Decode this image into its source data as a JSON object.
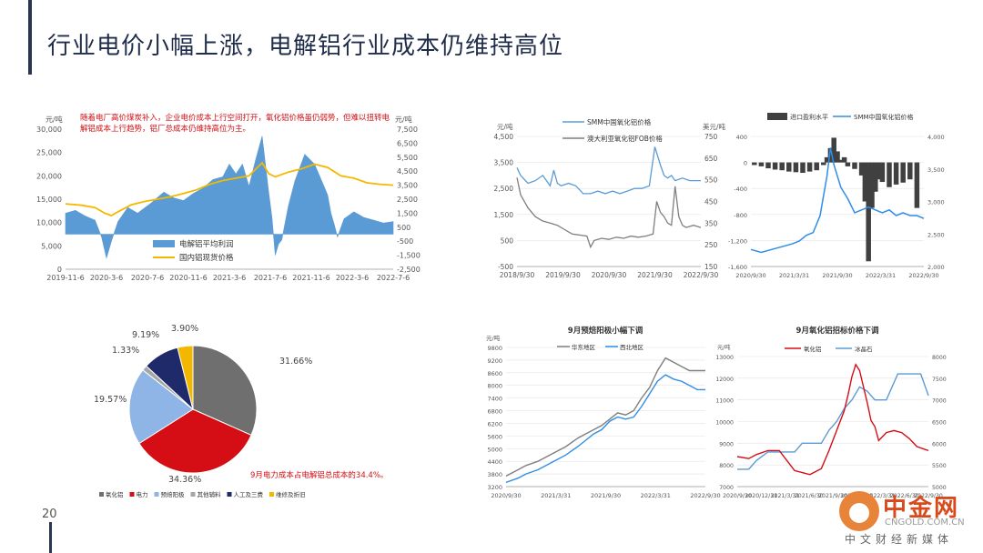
{
  "slide": {
    "title": "行业电价小幅上涨，电解铝行业成本仍维持高位",
    "page_number": "20"
  },
  "watermark": {
    "name": "中金网",
    "url": "CNGOLD.COM.CN",
    "slogan": "中文财经新媒体"
  },
  "chart_data": [
    {
      "id": "profit",
      "type": "area",
      "annotation": "随着电厂高价煤炭补入，企业电价成本上行空间打开，氧化铝价格虽仍弱势，但难以扭转电解铝成本上行趋势，铝厂总成本仍维持高位为主。",
      "left_unit": "元/吨",
      "right_unit": "元/吨",
      "left_ticks": [
        "30,000",
        "25,000",
        "20,000",
        "15,000",
        "10,000",
        "5,000",
        "0"
      ],
      "right_ticks": [
        "7,500",
        "6,500",
        "5,500",
        "4,500",
        "3,500",
        "2,500",
        "1,500",
        "500",
        "-500",
        "-1,500",
        "-2,500"
      ],
      "x_ticks": [
        "2019-11-6",
        "2020-3-6",
        "2020-7-6",
        "2020-11-6",
        "2021-3-6",
        "2021-7-6",
        "2021-11-6",
        "2022-3-6",
        "2022-7-6"
      ],
      "left_range": [
        0,
        30000
      ],
      "right_range": [
        -2500,
        7500
      ],
      "series": [
        {
          "name": "电解铝平均利润",
          "color": "#5b9bd5",
          "axis": "right",
          "x": [
            0,
            0.03,
            0.06,
            0.09,
            0.11,
            0.125,
            0.14,
            0.16,
            0.19,
            0.22,
            0.26,
            0.3,
            0.33,
            0.36,
            0.39,
            0.42,
            0.45,
            0.48,
            0.5,
            0.52,
            0.54,
            0.56,
            0.58,
            0.6,
            0.62,
            0.63,
            0.64,
            0.65,
            0.66,
            0.68,
            0.7,
            0.73,
            0.76,
            0.78,
            0.8,
            0.81,
            0.82,
            0.83,
            0.85,
            0.88,
            0.91,
            0.94,
            0.97,
            1.0
          ],
          "y": [
            1500,
            1700,
            1300,
            1000,
            -200,
            -1700,
            -500,
            900,
            1900,
            1500,
            2200,
            3000,
            2600,
            2400,
            2900,
            3300,
            3900,
            4100,
            5000,
            4300,
            5000,
            3400,
            5300,
            7000,
            3000,
            1200,
            -1500,
            -700,
            -400,
            2000,
            3800,
            5700,
            5000,
            3900,
            2800,
            1500,
            700,
            -200,
            1100,
            1600,
            1200,
            1000,
            800,
            900
          ]
        },
        {
          "name": "国内铝现货价格",
          "color": "#f5b800",
          "axis": "left",
          "x": [
            0,
            0.05,
            0.09,
            0.12,
            0.14,
            0.16,
            0.2,
            0.24,
            0.28,
            0.32,
            0.36,
            0.4,
            0.44,
            0.48,
            0.52,
            0.56,
            0.6,
            0.62,
            0.64,
            0.66,
            0.68,
            0.72,
            0.76,
            0.8,
            0.84,
            0.88,
            0.92,
            0.96,
            1.0
          ],
          "y": [
            14000,
            13700,
            13200,
            12000,
            11500,
            12300,
            13800,
            14500,
            15000,
            15500,
            16200,
            17000,
            18200,
            19000,
            19500,
            20000,
            22800,
            20500,
            19800,
            20300,
            20800,
            21500,
            22500,
            21800,
            20000,
            19500,
            18500,
            18200,
            18000
          ]
        }
      ]
    },
    {
      "id": "alumina-price",
      "type": "line",
      "left_unit": "元/吨",
      "right_unit": "美元/吨",
      "left_ticks": [
        "4,500",
        "3,500",
        "2,500",
        "1,500",
        "500",
        "-500"
      ],
      "right_ticks": [
        "750",
        "650",
        "550",
        "450",
        "350",
        "250",
        "150"
      ],
      "x_ticks": [
        "2018/9/30",
        "2019/9/30",
        "2020/9/30",
        "2021/9/30",
        "2022/9/30"
      ],
      "left_range": [
        -500,
        4500
      ],
      "right_range": [
        150,
        750
      ],
      "series": [
        {
          "name": "SMM中国氧化铝价格",
          "color": "#5b9bd5",
          "axis": "left",
          "x": [
            0,
            0.02,
            0.06,
            0.1,
            0.14,
            0.18,
            0.2,
            0.22,
            0.24,
            0.28,
            0.32,
            0.36,
            0.4,
            0.44,
            0.48,
            0.52,
            0.56,
            0.6,
            0.64,
            0.68,
            0.72,
            0.75,
            0.78,
            0.8,
            0.82,
            0.84,
            0.86,
            0.9,
            0.94,
            1.0
          ],
          "y": [
            3300,
            3000,
            2700,
            2800,
            3000,
            2600,
            3200,
            2700,
            2600,
            2700,
            2600,
            2300,
            2300,
            2400,
            2300,
            2400,
            2300,
            2400,
            2500,
            2500,
            2600,
            4100,
            3400,
            3000,
            2900,
            3000,
            2800,
            2900,
            2800,
            2800
          ]
        },
        {
          "name": "澳大利亚氧化铝FOB价格",
          "color": "#7f7f7f",
          "axis": "right",
          "x": [
            0,
            0.02,
            0.06,
            0.1,
            0.14,
            0.18,
            0.22,
            0.26,
            0.3,
            0.34,
            0.38,
            0.4,
            0.42,
            0.46,
            0.5,
            0.54,
            0.58,
            0.62,
            0.66,
            0.7,
            0.74,
            0.76,
            0.78,
            0.8,
            0.82,
            0.84,
            0.86,
            0.88,
            0.9,
            0.92,
            0.96,
            1.0
          ],
          "y": [
            560,
            480,
            420,
            380,
            360,
            350,
            340,
            320,
            300,
            295,
            290,
            240,
            270,
            280,
            275,
            285,
            280,
            290,
            285,
            290,
            300,
            450,
            400,
            380,
            350,
            340,
            520,
            380,
            340,
            330,
            340,
            330
          ]
        }
      ]
    },
    {
      "id": "import-margin",
      "type": "bar",
      "left_ticks": [
        "400",
        "0",
        "-400",
        "-800",
        "-1,200",
        "-1,600"
      ],
      "right_ticks": [
        "4,000",
        "3,500",
        "3,000",
        "2,500",
        "2,000"
      ],
      "x_ticks": [
        "2020/9/30",
        "2021/3/31",
        "2021/9/30",
        "2022/3/31",
        "2022/9/30"
      ],
      "left_range": [
        -1600,
        400
      ],
      "right_range": [
        2000,
        4300
      ],
      "series": [
        {
          "name": "进口盈利水平",
          "color": "#404040",
          "axis": "left",
          "x": [
            0.02,
            0.06,
            0.1,
            0.14,
            0.18,
            0.22,
            0.26,
            0.3,
            0.34,
            0.38,
            0.42,
            0.44,
            0.46,
            0.48,
            0.5,
            0.52,
            0.54,
            0.56,
            0.6,
            0.64,
            0.66,
            0.68,
            0.7,
            0.72,
            0.74,
            0.76,
            0.8,
            0.84,
            0.88,
            0.92,
            0.96
          ],
          "y": [
            -40,
            -60,
            -90,
            -110,
            -120,
            -140,
            -150,
            -160,
            -140,
            -120,
            -40,
            80,
            220,
            380,
            170,
            40,
            80,
            -60,
            -100,
            -200,
            -600,
            -1520,
            -700,
            -450,
            -260,
            -300,
            -380,
            -340,
            -310,
            -260,
            -700
          ]
        },
        {
          "name": "SMM中国氧化铝价格",
          "color": "#2e8ee8",
          "axis": "right",
          "x": [
            0,
            0.06,
            0.12,
            0.18,
            0.24,
            0.28,
            0.32,
            0.36,
            0.4,
            0.44,
            0.46,
            0.48,
            0.5,
            0.52,
            0.56,
            0.6,
            0.64,
            0.68,
            0.72,
            0.76,
            0.8,
            0.84,
            0.88,
            0.92,
            0.96,
            1.0
          ],
          "y": [
            2300,
            2250,
            2300,
            2350,
            2400,
            2450,
            2550,
            2600,
            2900,
            3600,
            4100,
            3800,
            3600,
            3400,
            3200,
            2950,
            3000,
            3050,
            3000,
            2950,
            3000,
            2900,
            2950,
            2900,
            2900,
            2850
          ]
        }
      ]
    },
    {
      "id": "cost-share",
      "type": "pie",
      "note": "9月电力成本占电解铝总成本的34.4%。",
      "slices": [
        {
          "name": "氧化铝",
          "value": 31.66,
          "label": "31.66%",
          "color": "#6f6f6f"
        },
        {
          "name": "电力",
          "value": 34.36,
          "label": "34.36%",
          "color": "#d40e14"
        },
        {
          "name": "预焙阳极",
          "value": 19.57,
          "label": "19.57%",
          "color": "#8fb4e6"
        },
        {
          "name": "其他辅料",
          "value": 1.33,
          "label": "1.33%",
          "color": "#a6a6a6"
        },
        {
          "name": "人工及三费",
          "value": 9.19,
          "label": "9.19%",
          "color": "#1f2a6b"
        },
        {
          "name": "维修及折旧",
          "value": 3.9,
          "label": "3.90%",
          "color": "#f2b800"
        }
      ]
    },
    {
      "id": "anode",
      "type": "line",
      "title": "9月预焙阳极小幅下调",
      "left_unit": "元/吨",
      "left_ticks": [
        "9800",
        "9200",
        "8600",
        "8000",
        "7400",
        "6800",
        "6200",
        "5600",
        "5000",
        "4400",
        "3800",
        "3200"
      ],
      "x_ticks": [
        "2020/9/30",
        "2021/3/31",
        "2021/9/30",
        "2022/3/31",
        "2022/9/30"
      ],
      "left_range": [
        3200,
        9800
      ],
      "series": [
        {
          "name": "华东地区",
          "color": "#7f7f7f",
          "x": [
            0,
            0.06,
            0.1,
            0.16,
            0.22,
            0.3,
            0.36,
            0.4,
            0.44,
            0.48,
            0.52,
            0.56,
            0.6,
            0.64,
            0.68,
            0.72,
            0.76,
            0.8,
            0.84,
            0.88,
            0.92,
            0.96,
            1.0
          ],
          "y": [
            3700,
            4000,
            4200,
            4400,
            4700,
            5100,
            5500,
            5700,
            5900,
            6100,
            6400,
            6700,
            6600,
            6800,
            7400,
            7900,
            8700,
            9300,
            9100,
            8900,
            8700,
            8700,
            8700
          ]
        },
        {
          "name": "西北地区",
          "color": "#2e8ee8",
          "x": [
            0,
            0.06,
            0.1,
            0.16,
            0.22,
            0.3,
            0.36,
            0.4,
            0.44,
            0.48,
            0.52,
            0.56,
            0.6,
            0.64,
            0.68,
            0.72,
            0.76,
            0.8,
            0.84,
            0.88,
            0.92,
            0.96,
            1.0
          ],
          "y": [
            3400,
            3600,
            3800,
            4000,
            4300,
            4700,
            5100,
            5400,
            5700,
            5900,
            6300,
            6500,
            6400,
            6500,
            7000,
            7600,
            8200,
            8500,
            8300,
            8200,
            8000,
            7800,
            7800
          ]
        }
      ]
    },
    {
      "id": "alumina-bid",
      "type": "line",
      "title": "9月氧化铝招标价格下调",
      "left_unit": "元/吨",
      "left_ticks": [
        "13000",
        "12000",
        "11000",
        "10000",
        "9000",
        "8000",
        "7000"
      ],
      "right_ticks": [
        "8000",
        "7500",
        "7000",
        "6500",
        "6000",
        "5500",
        "5000"
      ],
      "x_ticks": [
        "2020/9/30",
        "2020/12/31",
        "2021/3/31",
        "2021/6/30",
        "2021/9/30",
        "2021/12/31",
        "2022/3/31",
        "2022/6/30",
        "2022/9/30"
      ],
      "left_range": [
        7000,
        13500
      ],
      "right_range": [
        5000,
        8000
      ],
      "series": [
        {
          "name": "氧化铝",
          "color": "#d40e14",
          "axis": "left",
          "x": [
            0,
            0.06,
            0.1,
            0.16,
            0.22,
            0.26,
            0.3,
            0.34,
            0.38,
            0.44,
            0.48,
            0.52,
            0.56,
            0.58,
            0.6,
            0.62,
            0.64,
            0.66,
            0.68,
            0.7,
            0.72,
            0.74,
            0.78,
            0.82,
            0.86,
            0.9,
            0.94,
            1.0
          ],
          "y": [
            8500,
            8400,
            8600,
            8800,
            8800,
            8300,
            7800,
            7700,
            7600,
            7900,
            8800,
            9800,
            10800,
            11600,
            12500,
            13100,
            12800,
            12000,
            11200,
            10300,
            10000,
            9300,
            9700,
            9800,
            9700,
            9400,
            9000,
            8800
          ]
        },
        {
          "name": "冰晶石",
          "color": "#5b9bd5",
          "axis": "right",
          "x": [
            0,
            0.06,
            0.1,
            0.16,
            0.22,
            0.26,
            0.3,
            0.34,
            0.38,
            0.44,
            0.48,
            0.52,
            0.56,
            0.6,
            0.64,
            0.68,
            0.72,
            0.78,
            0.84,
            0.88,
            0.92,
            0.96,
            1.0
          ],
          "y": [
            5400,
            5400,
            5600,
            5800,
            5800,
            5800,
            5800,
            6000,
            6000,
            6000,
            6300,
            6500,
            6800,
            7000,
            7300,
            7200,
            7000,
            7000,
            7600,
            7600,
            7600,
            7600,
            7100
          ]
        }
      ]
    }
  ]
}
